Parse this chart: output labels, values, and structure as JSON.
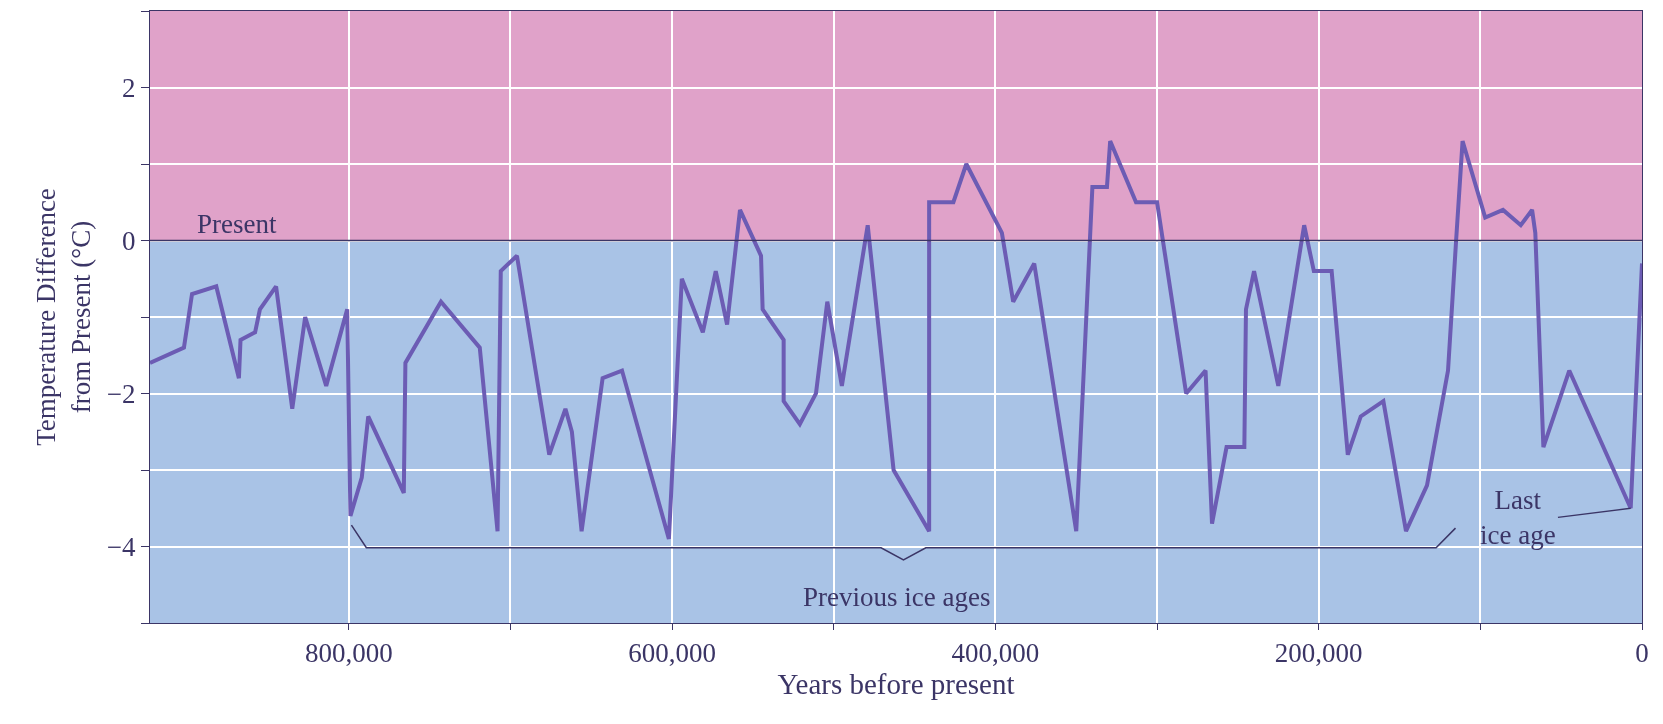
{
  "chart_data": {
    "type": "line",
    "xlabel": "Years before present",
    "ylabel": "Temperature Difference\nfrom Present (°C)",
    "x": [
      923000,
      902000,
      897000,
      882000,
      868000,
      867000,
      858000,
      855000,
      845000,
      835000,
      827000,
      814000,
      801000,
      799000,
      792000,
      788000,
      766000,
      765000,
      743000,
      719000,
      708000,
      706000,
      696000,
      676000,
      666000,
      662000,
      656000,
      643000,
      631000,
      602000,
      594000,
      581000,
      573000,
      566000,
      558000,
      545000,
      544000,
      531000,
      531000,
      521000,
      511000,
      504000,
      495000,
      479000,
      463000,
      441000,
      441000,
      426000,
      418000,
      396000,
      389000,
      376000,
      350000,
      340000,
      331000,
      329000,
      313000,
      302000,
      300000,
      282000,
      270000,
      266000,
      257000,
      246000,
      245000,
      240000,
      225000,
      209000,
      203000,
      192000,
      182000,
      174000,
      160000,
      146000,
      133000,
      120000,
      115000,
      111000,
      97000,
      86000,
      75000,
      68000,
      66000,
      61000,
      45000,
      7000,
      0
    ],
    "series": [
      {
        "color": "#6c5cb4",
        "values": [
          -1.6,
          -1.4,
          -0.7,
          -0.6,
          -1.8,
          -1.3,
          -1.2,
          -0.9,
          -0.6,
          -2.2,
          -1.0,
          -1.9,
          -0.9,
          -3.6,
          -3.1,
          -2.3,
          -3.3,
          -1.6,
          -0.8,
          -1.4,
          -3.8,
          -0.4,
          -0.2,
          -2.8,
          -2.2,
          -2.5,
          -3.8,
          -1.8,
          -1.7,
          -3.9,
          -0.5,
          -1.2,
          -0.4,
          -1.1,
          0.4,
          -0.2,
          -0.9,
          -1.3,
          -2.1,
          -2.4,
          -2.0,
          -0.8,
          -1.9,
          0.2,
          -3.0,
          -3.8,
          0.5,
          0.5,
          1.0,
          0.1,
          -0.8,
          -0.3,
          -3.8,
          0.7,
          0.7,
          1.3,
          0.5,
          0.5,
          0.5,
          -2.0,
          -1.7,
          -3.7,
          -2.7,
          -2.7,
          -0.9,
          -0.4,
          -1.9,
          0.2,
          -0.4,
          -0.4,
          -2.8,
          -2.3,
          -2.1,
          -3.8,
          -3.2,
          -1.7,
          0.0,
          1.3,
          0.3,
          0.4,
          0.2,
          0.4,
          0.1,
          -2.7,
          -1.7,
          -3.5,
          -0.3
        ]
      }
    ],
    "xlim": [
      923000,
      0
    ],
    "ylim": [
      -5,
      3
    ],
    "xticks": [
      {
        "value": 800000,
        "label": "800,000"
      },
      {
        "value": 700000,
        "label": null
      },
      {
        "value": 600000,
        "label": "600,000"
      },
      {
        "value": 500000,
        "label": null
      },
      {
        "value": 400000,
        "label": "400,000"
      },
      {
        "value": 300000,
        "label": null
      },
      {
        "value": 200000,
        "label": "200,000"
      },
      {
        "value": 100000,
        "label": null
      },
      0
    ],
    "yticks": [
      {
        "value": -5,
        "label": null
      },
      -4,
      {
        "value": -3,
        "label": null
      },
      -2,
      {
        "value": -1,
        "label": null
      },
      0,
      {
        "value": 1,
        "label": null
      },
      2,
      {
        "value": 3,
        "label": null
      }
    ],
    "grid": true,
    "marker": "none",
    "line_style": "solid",
    "bands": [
      {
        "axis": "y",
        "from": 0,
        "to": 3,
        "color": "#e0a2c9"
      },
      {
        "axis": "y",
        "from": -5,
        "to": 0,
        "color": "#a9c3e6"
      }
    ],
    "ref_lines": [
      {
        "axis": "y",
        "value": 0,
        "label": "Present",
        "color": "#3b3566"
      }
    ],
    "annotations": [
      "Previous ice ages",
      {
        "text": "Last\nice age",
        "x": 7000,
        "y": -3.5
      }
    ]
  }
}
